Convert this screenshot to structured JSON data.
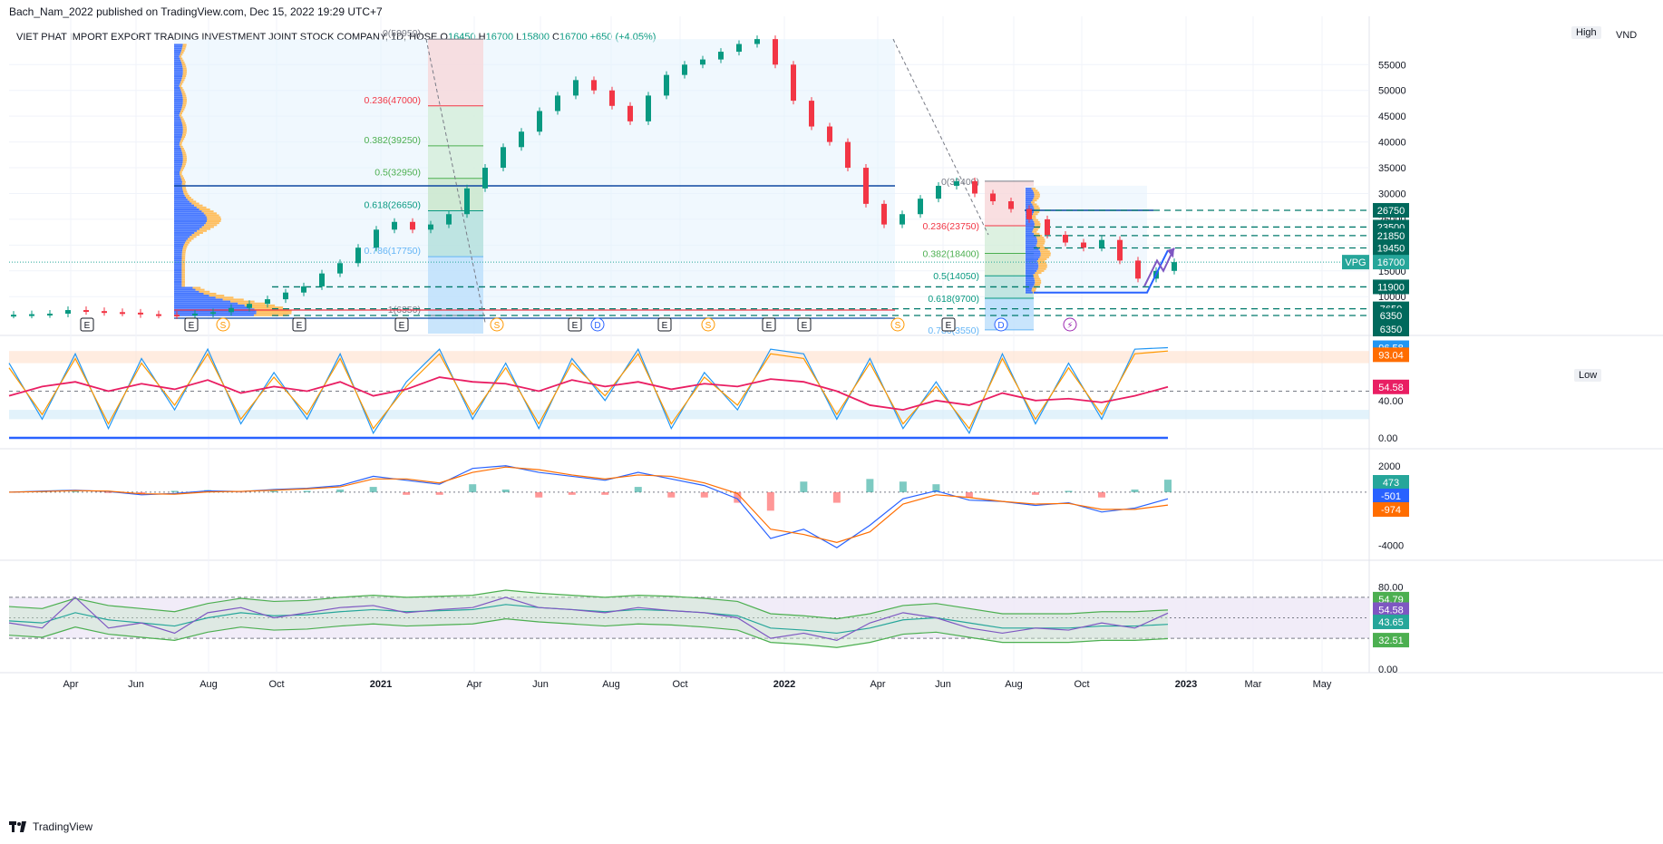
{
  "header": {
    "published": "Bach_Nam_2022 published on TradingView.com, Dec 15, 2022 19:29 UTC+7"
  },
  "symbol_line": {
    "name": "VIET PHAT IMPORT EXPORT TRADING INVESTMENT JOINT STOCK COMPANY, 1D, HOSE",
    "o_label": "O",
    "o": "16450",
    "h_label": "H",
    "h": "16700",
    "l_label": "L",
    "l": "15800",
    "c_label": "C",
    "c": "16700",
    "change": "+650 (+4.05%)"
  },
  "corner_labels": {
    "high": "High",
    "low": "Low",
    "currency": "VND"
  },
  "footer": {
    "brand": "TradingView"
  },
  "colors": {
    "up": "#089981",
    "down": "#f23645",
    "blue": "#2962ff",
    "orange": "#ff6d00",
    "pink": "#e91e63",
    "purple": "#7e57c2",
    "green": "#4caf50",
    "teal": "#26a69a"
  },
  "chart_data": [
    {
      "type": "line",
      "panel": "price",
      "y_ticks": [
        10000,
        15000,
        20000,
        25000,
        30000,
        35000,
        40000,
        45000,
        50000,
        55000
      ],
      "x_ticks": [
        "Apr",
        "Jun",
        "Aug",
        "Oct",
        "2021",
        "Apr",
        "Jun",
        "Aug",
        "Oct",
        "2022",
        "Apr",
        "Jun",
        "Aug",
        "Oct",
        "2023",
        "Mar",
        "May"
      ],
      "close_series": [
        6500,
        6600,
        6700,
        7400,
        7200,
        7000,
        6900,
        6600,
        6500,
        6350,
        6700,
        7000,
        7800,
        8600,
        9500,
        10800,
        12000,
        14500,
        16500,
        19500,
        23000,
        24500,
        23000,
        24000,
        26000,
        31000,
        35000,
        39000,
        42000,
        46000,
        49000,
        52000,
        50000,
        47000,
        44000,
        49000,
        53000,
        55000,
        56000,
        57500,
        59000,
        59950,
        55000,
        48000,
        43000,
        40000,
        35000,
        28000,
        24000,
        26000,
        29000,
        31500,
        32400,
        30000,
        28500,
        27000,
        25000,
        22000,
        20500,
        19500,
        21000,
        17000,
        13500,
        15000,
        16700
      ],
      "price_labels": [
        "26750",
        "23500",
        "21850",
        "19450",
        "16700",
        "11900",
        "7650",
        "6350",
        "6350"
      ],
      "symbol_tag": "VPG",
      "fib_left": [
        {
          "label": "0(59950)",
          "value": 59950
        },
        {
          "label": "0.236(47000)",
          "value": 47000
        },
        {
          "label": "0.382(39250)",
          "value": 39250
        },
        {
          "label": "0.5(32950)",
          "value": 32950
        },
        {
          "label": "0.618(26650)",
          "value": 26650
        },
        {
          "label": "0.786(17750)",
          "value": 17750
        },
        {
          "label": "1(6350)",
          "value": 6350
        }
      ],
      "fib_right": [
        {
          "label": "0(32400)",
          "value": 32400
        },
        {
          "label": "0.236(23750)",
          "value": 23750
        },
        {
          "label": "0.382(18400)",
          "value": 18400
        },
        {
          "label": "0.5(14050)",
          "value": 14050
        },
        {
          "label": "0.618(9700)",
          "value": 9700
        },
        {
          "label": "0.786(3550)",
          "value": 3550
        }
      ],
      "horizontal_levels": [
        31500,
        26750,
        23500,
        21850,
        19450,
        11900,
        7650,
        6350
      ],
      "event_markers": [
        "E",
        "E",
        "S",
        "E",
        "E",
        "S",
        "E",
        "D",
        "E",
        "S",
        "E",
        "E",
        "S",
        "E",
        "D",
        "⚡"
      ]
    },
    {
      "type": "line",
      "panel": "stochastic_rsi",
      "y_ticks": [
        0,
        40
      ],
      "value_labels": [
        "96.58",
        "93.04",
        "54.58"
      ],
      "series": [
        {
          "values": [
            80,
            20,
            90,
            10,
            85,
            30,
            95,
            15,
            70,
            20,
            90,
            5,
            60,
            95,
            20,
            80,
            10,
            85,
            40,
            95,
            10,
            70,
            30,
            95,
            90,
            20,
            85,
            10,
            60,
            5,
            90,
            15,
            80,
            20,
            95,
            96.58
          ]
        },
        {
          "values": [
            75,
            25,
            85,
            15,
            80,
            35,
            90,
            20,
            65,
            25,
            85,
            10,
            55,
            90,
            25,
            75,
            15,
            80,
            45,
            90,
            15,
            65,
            35,
            90,
            85,
            25,
            80,
            15,
            55,
            10,
            85,
            20,
            75,
            25,
            90,
            93.04
          ]
        },
        {
          "values": [
            45,
            55,
            60,
            50,
            58,
            52,
            62,
            48,
            55,
            50,
            60,
            45,
            52,
            65,
            60,
            58,
            50,
            62,
            55,
            60,
            52,
            58,
            55,
            63,
            60,
            50,
            35,
            30,
            40,
            35,
            48,
            40,
            42,
            38,
            45,
            54.58
          ]
        }
      ]
    },
    {
      "type": "line",
      "panel": "macd",
      "y_ticks": [
        -4000,
        2000
      ],
      "value_labels": [
        "473",
        "-501",
        "-974"
      ],
      "series": [
        {
          "values": [
            0,
            80,
            150,
            50,
            -200,
            -100,
            100,
            50,
            200,
            300,
            500,
            1200,
            900,
            600,
            1800,
            2000,
            1500,
            1200,
            900,
            1500,
            1000,
            500,
            -500,
            -3500,
            -2800,
            -4200,
            -2500,
            -500,
            100,
            -600,
            -700,
            -1000,
            -800,
            -1500,
            -1200,
            -501
          ]
        },
        {
          "values": [
            0,
            50,
            120,
            80,
            -120,
            -150,
            20,
            60,
            150,
            250,
            400,
            1000,
            1000,
            700,
            1500,
            1900,
            1700,
            1300,
            1000,
            1300,
            1200,
            700,
            -100,
            -2800,
            -3200,
            -3800,
            -3000,
            -900,
            -200,
            -400,
            -700,
            -900,
            -850,
            -1300,
            -1300,
            -974
          ]
        }
      ]
    },
    {
      "type": "line",
      "panel": "rsi_bollinger",
      "y_ticks": [
        0,
        80
      ],
      "value_labels": [
        "54.79",
        "54.58",
        "43.65",
        "32.51"
      ],
      "series": [
        {
          "values": [
            45,
            40,
            70,
            40,
            45,
            35,
            55,
            60,
            50,
            55,
            60,
            62,
            55,
            58,
            60,
            70,
            60,
            58,
            55,
            60,
            57,
            55,
            50,
            30,
            35,
            28,
            45,
            55,
            50,
            40,
            35,
            40,
            38,
            45,
            40,
            54.58
          ]
        },
        {
          "values": [
            47,
            45,
            55,
            48,
            45,
            42,
            50,
            55,
            52,
            53,
            56,
            58,
            56,
            57,
            58,
            63,
            60,
            58,
            56,
            58,
            57,
            55,
            52,
            40,
            38,
            35,
            40,
            48,
            50,
            45,
            40,
            40,
            40,
            42,
            42,
            43.65
          ]
        }
      ]
    }
  ]
}
